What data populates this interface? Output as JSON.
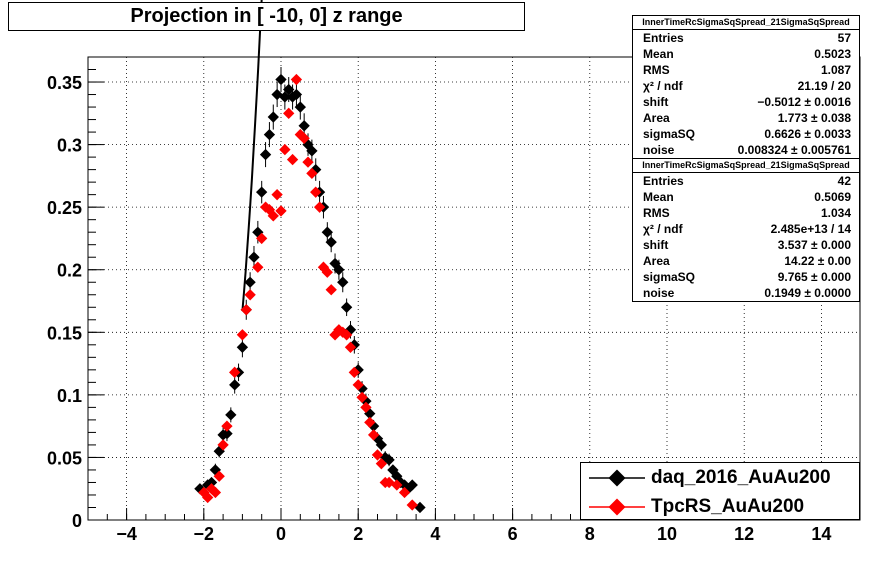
{
  "title": "Projection in [ -10,   0] z range",
  "stats_boxes": [
    {
      "name": "InnerTimeRcSigmaSqSpread_21SigmaSqSpread",
      "rows": [
        {
          "label": "Entries",
          "value": "57"
        },
        {
          "label": "Mean",
          "value": "0.5023"
        },
        {
          "label": "RMS",
          "value": "1.087"
        },
        {
          "label": "χ² / ndf",
          "value": "21.19 / 20"
        },
        {
          "label": "shift",
          "value": "−0.5012 ± 0.0016"
        },
        {
          "label": "Area",
          "value": "1.773 ± 0.038"
        },
        {
          "label": "sigmaSQ",
          "value": "0.6626 ± 0.0033"
        },
        {
          "label": "noise",
          "value": "0.008324 ± 0.005761"
        }
      ]
    },
    {
      "name": "InnerTimeRcSigmaSqSpread_21SigmaSqSpread",
      "rows": [
        {
          "label": "Entries",
          "value": "42"
        },
        {
          "label": "Mean",
          "value": "0.5069"
        },
        {
          "label": "RMS",
          "value": "1.034"
        },
        {
          "label": "χ² / ndf",
          "value": "2.485e+13 / 14"
        },
        {
          "label": "shift",
          "value": "3.537 ± 0.000"
        },
        {
          "label": "Area",
          "value": "14.22 ± 0.00"
        },
        {
          "label": "sigmaSQ",
          "value": "9.765 ± 0.000"
        },
        {
          "label": "noise",
          "value": "0.1949 ± 0.0000"
        }
      ]
    }
  ],
  "legend": [
    {
      "label": "daq_2016_AuAu200",
      "color": "#000000"
    },
    {
      "label": "TpcRS_AuAu200",
      "color": "#ff0000"
    }
  ],
  "chart_data": {
    "type": "scatter",
    "title": "Projection in [ -10,   0] z range",
    "xlabel": "",
    "ylabel": "",
    "xlim": [
      -5,
      15
    ],
    "ylim": [
      0,
      0.37
    ],
    "x_ticks": [
      -4,
      -2,
      0,
      2,
      4,
      6,
      8,
      10,
      12,
      14
    ],
    "y_ticks": [
      0,
      0.05,
      0.1,
      0.15,
      0.2,
      0.25,
      0.3,
      0.35
    ],
    "y_tick_labels": [
      "0",
      "0.05",
      "0.1",
      "0.15",
      "0.2",
      "0.25",
      "0.3",
      "0.35"
    ],
    "grid": true,
    "legend_position": "bottom-right",
    "series": [
      {
        "name": "daq_2016_AuAu200",
        "color": "#000000",
        "x": [
          -2.1,
          -1.9,
          -1.8,
          -1.7,
          -1.6,
          -1.5,
          -1.4,
          -1.3,
          -1.2,
          -1.1,
          -1.0,
          -0.9,
          -0.8,
          -0.7,
          -0.6,
          -0.5,
          -0.4,
          -0.3,
          -0.2,
          -0.1,
          0.0,
          0.1,
          0.2,
          0.3,
          0.4,
          0.5,
          0.6,
          0.7,
          0.8,
          0.9,
          1.0,
          1.1,
          1.2,
          1.3,
          1.4,
          1.5,
          1.6,
          1.7,
          1.8,
          1.9,
          2.0,
          2.1,
          2.2,
          2.3,
          2.4,
          2.5,
          2.6,
          2.7,
          2.8,
          2.9,
          3.0,
          3.1,
          3.2,
          3.3,
          3.4,
          3.6
        ],
        "y": [
          0.025,
          0.028,
          0.03,
          0.04,
          0.055,
          0.068,
          0.069,
          0.084,
          0.108,
          0.118,
          0.138,
          0.168,
          0.19,
          0.21,
          0.23,
          0.262,
          0.292,
          0.308,
          0.322,
          0.34,
          0.352,
          0.338,
          0.344,
          0.338,
          0.34,
          0.33,
          0.315,
          0.3,
          0.295,
          0.28,
          0.262,
          0.25,
          0.23,
          0.222,
          0.205,
          0.2,
          0.19,
          0.17,
          0.152,
          0.14,
          0.12,
          0.105,
          0.095,
          0.085,
          0.075,
          0.065,
          0.06,
          0.05,
          0.048,
          0.04,
          0.035,
          0.03,
          0.028,
          0.025,
          0.028,
          0.01
        ],
        "err": [
          0.004,
          0.004,
          0.004,
          0.005,
          0.005,
          0.006,
          0.006,
          0.006,
          0.007,
          0.007,
          0.008,
          0.008,
          0.008,
          0.009,
          0.009,
          0.009,
          0.01,
          0.01,
          0.01,
          0.01,
          0.01,
          0.01,
          0.01,
          0.01,
          0.01,
          0.01,
          0.01,
          0.009,
          0.009,
          0.009,
          0.009,
          0.009,
          0.008,
          0.008,
          0.008,
          0.008,
          0.008,
          0.007,
          0.007,
          0.007,
          0.006,
          0.006,
          0.006,
          0.006,
          0.005,
          0.005,
          0.005,
          0.005,
          0.005,
          0.004,
          0.004,
          0.004,
          0.004,
          0.004,
          0.004,
          0.003
        ]
      },
      {
        "name": "TpcRS_AuAu200",
        "color": "#ff0000",
        "x": [
          -2.0,
          -1.9,
          -1.8,
          -1.7,
          -1.6,
          -1.5,
          -1.4,
          -1.2,
          -1.0,
          -0.9,
          -0.8,
          -0.6,
          -0.5,
          -0.4,
          -0.3,
          -0.2,
          -0.1,
          0.0,
          0.1,
          0.2,
          0.3,
          0.4,
          0.5,
          0.6,
          0.7,
          0.8,
          0.9,
          1.0,
          1.1,
          1.2,
          1.3,
          1.4,
          1.5,
          1.6,
          1.7,
          1.8,
          1.9,
          2.0,
          2.1,
          2.2,
          2.3,
          2.4,
          2.5,
          2.6,
          2.7,
          2.8,
          3.0,
          3.2,
          3.4
        ],
        "y": [
          0.022,
          0.018,
          0.025,
          0.022,
          0.035,
          0.06,
          0.075,
          0.118,
          0.148,
          0.168,
          0.18,
          0.202,
          0.225,
          0.25,
          0.248,
          0.243,
          0.26,
          0.247,
          0.296,
          0.325,
          0.288,
          0.352,
          0.308,
          0.305,
          0.286,
          0.277,
          0.262,
          0.25,
          0.202,
          0.198,
          0.184,
          0.148,
          0.152,
          0.15,
          0.148,
          0.138,
          0.118,
          0.108,
          0.098,
          0.09,
          0.078,
          0.068,
          0.052,
          0.045,
          0.03,
          0.03,
          0.028,
          0.022,
          0.012
        ]
      }
    ],
    "fits": [
      {
        "series": "daq_2016_AuAu200",
        "color": "#000000",
        "x_range": [
          -1.0,
          1.45
        ],
        "shift": -0.5012,
        "area": 1.773,
        "sigmaSQ": 0.6626,
        "noise": 0.008324
      },
      {
        "series": "TpcRS_AuAu200",
        "color": "#ff0000",
        "x_range": [
          -0.85,
          0.0
        ],
        "shift": 3.537,
        "area": 14.22,
        "sigmaSQ": 9.765,
        "noise": 0.1949
      }
    ]
  }
}
